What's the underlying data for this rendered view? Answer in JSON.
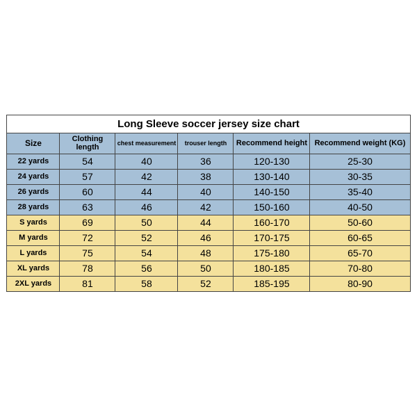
{
  "title": "Long Sleeve soccer jersey size chart",
  "columns": [
    {
      "label": "Size",
      "width": 76,
      "class": "size-col"
    },
    {
      "label": "Clothing length",
      "width": 80
    },
    {
      "label": "chest measurement",
      "width": 90,
      "class": "small"
    },
    {
      "label": "trouser length",
      "width": 80,
      "class": "small"
    },
    {
      "label": "Recommend height",
      "width": 110
    },
    {
      "label": "Recommend weight (KG)",
      "width": 144
    }
  ],
  "rows": [
    {
      "group": "blue",
      "cells": [
        "22 yards",
        "54",
        "40",
        "36",
        "120-130",
        "25-30"
      ]
    },
    {
      "group": "blue",
      "cells": [
        "24 yards",
        "57",
        "42",
        "38",
        "130-140",
        "30-35"
      ]
    },
    {
      "group": "blue",
      "cells": [
        "26 yards",
        "60",
        "44",
        "40",
        "140-150",
        "35-40"
      ]
    },
    {
      "group": "blue",
      "cells": [
        "28 yards",
        "63",
        "46",
        "42",
        "150-160",
        "40-50"
      ]
    },
    {
      "group": "yellow",
      "cells": [
        "S yards",
        "69",
        "50",
        "44",
        "160-170",
        "50-60"
      ]
    },
    {
      "group": "yellow",
      "cells": [
        "M yards",
        "72",
        "52",
        "46",
        "170-175",
        "60-65"
      ]
    },
    {
      "group": "yellow",
      "cells": [
        "L yards",
        "75",
        "54",
        "48",
        "175-180",
        "65-70"
      ]
    },
    {
      "group": "yellow",
      "cells": [
        "XL yards",
        "78",
        "56",
        "50",
        "180-185",
        "70-80"
      ]
    },
    {
      "group": "yellow",
      "cells": [
        "2XL yards",
        "81",
        "58",
        "52",
        "185-195",
        "80-90"
      ]
    }
  ],
  "colors": {
    "header_bg": "#a6c0d7",
    "blue_bg": "#a6c0d7",
    "yellow_bg": "#f4e19c",
    "border": "#444444",
    "background": "#ffffff"
  }
}
